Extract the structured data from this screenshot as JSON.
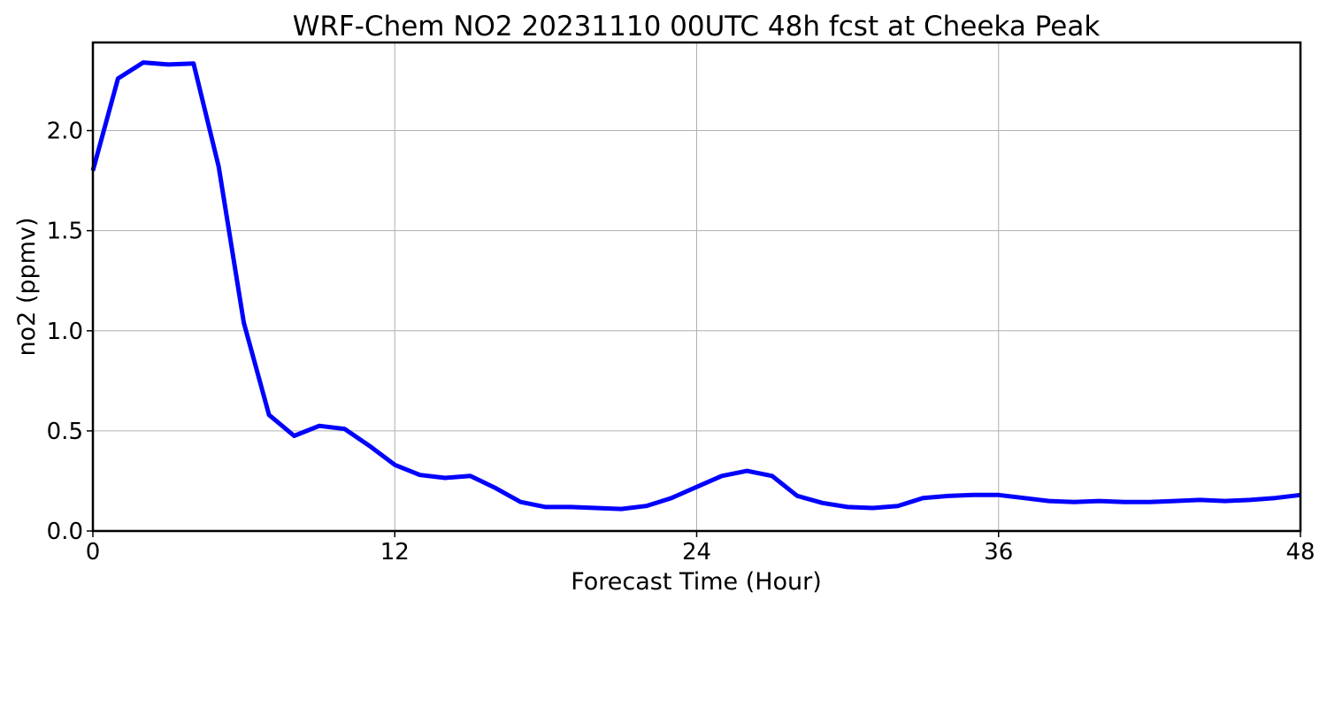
{
  "chart_data": {
    "type": "line",
    "title": "WRF-Chem NO2  20231110 00UTC 48h fcst at Cheeka Peak",
    "xlabel": "Forecast Time (Hour)",
    "ylabel": "no2  (ppmv)",
    "xlim": [
      0,
      48
    ],
    "ylim": [
      0,
      2.44
    ],
    "xticks": [
      0,
      12,
      24,
      36,
      48
    ],
    "xtick_labels": [
      "0",
      "12",
      "24",
      "36",
      "48"
    ],
    "yticks": [
      0.0,
      0.5,
      1.0,
      1.5,
      2.0
    ],
    "ytick_labels": [
      "0.0",
      "0.5",
      "1.0",
      "1.5",
      "2.0"
    ],
    "grid": true,
    "series": [
      {
        "color": "#0000ff",
        "x": [
          0,
          1,
          2,
          3,
          4,
          5,
          6,
          7,
          8,
          9,
          10,
          11,
          12,
          13,
          14,
          15,
          16,
          17,
          18,
          19,
          20,
          21,
          22,
          23,
          24,
          25,
          26,
          27,
          28,
          29,
          30,
          31,
          32,
          33,
          34,
          35,
          36,
          37,
          38,
          39,
          40,
          41,
          42,
          43,
          44,
          45,
          46,
          47,
          48
        ],
        "y": [
          1.8,
          2.26,
          2.34,
          2.33,
          2.335,
          1.82,
          1.04,
          0.58,
          0.475,
          0.525,
          0.51,
          0.425,
          0.33,
          0.28,
          0.265,
          0.275,
          0.215,
          0.145,
          0.12,
          0.12,
          0.115,
          0.11,
          0.125,
          0.165,
          0.22,
          0.275,
          0.3,
          0.275,
          0.175,
          0.14,
          0.12,
          0.115,
          0.125,
          0.165,
          0.175,
          0.18,
          0.18,
          0.165,
          0.15,
          0.145,
          0.15,
          0.145,
          0.145,
          0.15,
          0.155,
          0.15,
          0.155,
          0.165,
          0.18
        ]
      }
    ]
  }
}
